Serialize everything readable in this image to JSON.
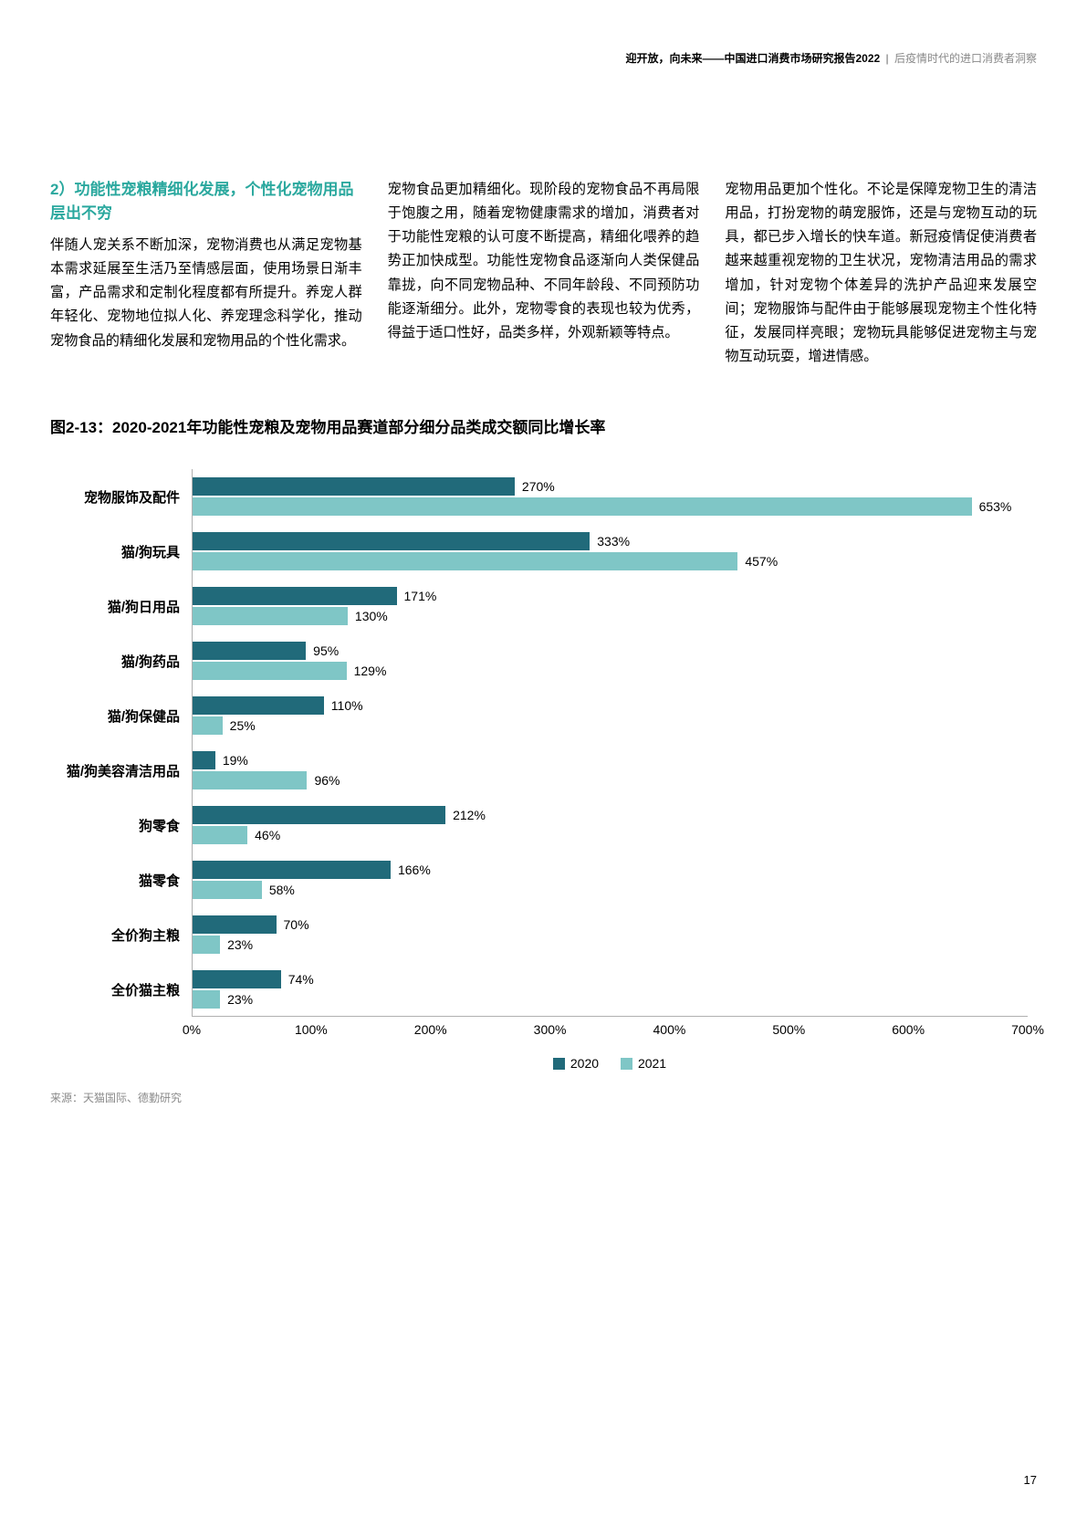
{
  "header": {
    "bold": "迎开放，向未来——中国进口消费市场研究报告2022",
    "section": "后疫情时代的进口消费者洞察"
  },
  "subtitle": "2）功能性宠粮精细化发展，个性化宠物用品层出不穷",
  "col1": "伴随人宠关系不断加深，宠物消费也从满足宠物基本需求延展至生活乃至情感层面，使用场景日渐丰富，产品需求和定制化程度都有所提升。养宠人群年轻化、宠物地位拟人化、养宠理念科学化，推动宠物食品的精细化发展和宠物用品的个性化需求。",
  "col2": "宠物食品更加精细化。现阶段的宠物食品不再局限于饱腹之用，随着宠物健康需求的增加，消费者对于功能性宠粮的认可度不断提高，精细化喂养的趋势正加快成型。功能性宠物食品逐渐向人类保健品靠拢，向不同宠物品种、不同年龄段、不同预防功能逐渐细分。此外，宠物零食的表现也较为优秀，得益于适口性好，品类多样，外观新颖等特点。",
  "col3": "宠物用品更加个性化。不论是保障宠物卫生的清洁用品，打扮宠物的萌宠服饰，还是与宠物互动的玩具，都已步入增长的快车道。新冠疫情促使消费者越来越重视宠物的卫生状况，宠物清洁用品的需求增加，针对宠物个体差异的洗护产品迎来发展空间；宠物服饰与配件由于能够展现宠物主个性化特征，发展同样亮眼；宠物玩具能够促进宠物主与宠物互动玩耍，增进情感。",
  "chart": {
    "title": "图2-13：2020-2021年功能性宠粮及宠物用品赛道部分细分品类成交额同比增长率",
    "type": "horizontal_grouped_bar",
    "categories": [
      "宠物服饰及配件",
      "猫/狗玩具",
      "猫/狗日用品",
      "猫/狗药品",
      "猫/狗保健品",
      "猫/狗美容清洁用品",
      "狗零食",
      "猫零食",
      "全价狗主粮",
      "全价猫主粮"
    ],
    "series": [
      {
        "name": "2020",
        "color": "#216a7a",
        "values": [
          270,
          333,
          171,
          95,
          110,
          19,
          212,
          166,
          70,
          74
        ]
      },
      {
        "name": "2021",
        "color": "#7fc6c6",
        "values": [
          653,
          457,
          130,
          129,
          25,
          96,
          46,
          58,
          23,
          23
        ]
      }
    ],
    "x_ticks": [
      "0%",
      "100%",
      "200%",
      "300%",
      "400%",
      "500%",
      "600%",
      "700%"
    ],
    "xlim": [
      0,
      700
    ],
    "label_fontsize": 15,
    "value_fontsize": 14,
    "legend_labels": [
      "2020",
      "2021"
    ],
    "background_color": "#ffffff",
    "axis_color": "#b0b0b0"
  },
  "source": "来源：天猫国际、德勤研究",
  "page_num": "17"
}
